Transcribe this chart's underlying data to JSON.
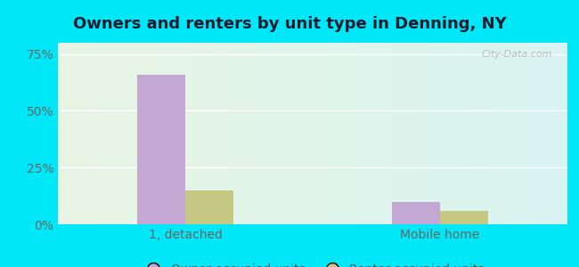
{
  "title": "Owners and renters by unit type in Denning, NY",
  "categories": [
    "1, detached",
    "Mobile home"
  ],
  "owner_values": [
    66,
    10
  ],
  "renter_values": [
    15,
    6
  ],
  "owner_color": "#c4a8d4",
  "renter_color": "#c5c882",
  "ylim": [
    0,
    80
  ],
  "yticks": [
    0,
    25,
    50,
    75
  ],
  "ytick_labels": [
    "0%",
    "25%",
    "50%",
    "75%"
  ],
  "bar_width": 0.38,
  "title_fontsize": 13,
  "tick_fontsize": 10,
  "legend_fontsize": 10,
  "watermark": "City-Data.com",
  "outer_bg": "#00e8f8"
}
